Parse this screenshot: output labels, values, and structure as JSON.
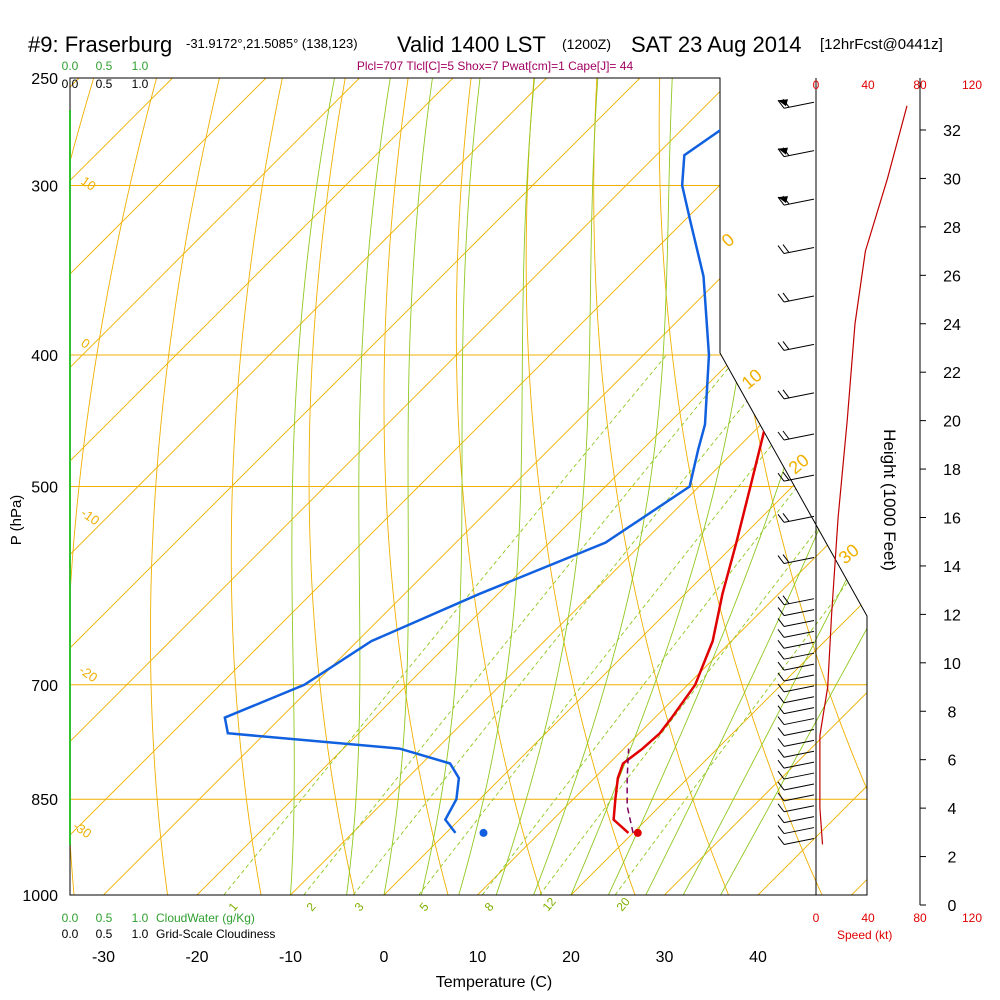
{
  "header": {
    "station": "#9: Fraserburg",
    "coords": "-31.9172°,21.5085° (138,123)",
    "valid": "Valid 1400 LST",
    "zulu": "(1200Z)",
    "date": "SAT 23 Aug 2014",
    "forecast": "[12hrFcst@0441z]"
  },
  "indices": "Plcl=707 Tlcl[C]=5 Shox=7 Pwat[cm]=1 Cape[J]= 44",
  "chart_data": {
    "type": "line",
    "subtype": "skew-t log-p sounding",
    "xlabel": "Temperature (C)",
    "ylabel": "P (hPa)",
    "y2label": "Height (1000 Feet)",
    "x_ticks": [
      "-30",
      "-20",
      "-10",
      "0",
      "10",
      "20",
      "30",
      "40"
    ],
    "x_tick_values": [
      -30,
      -20,
      -10,
      0,
      10,
      20,
      30,
      40
    ],
    "y_ticks": [
      "250",
      "300",
      "400",
      "500",
      "700",
      "850",
      "1000"
    ],
    "y_tick_values": [
      250,
      300,
      400,
      500,
      700,
      850,
      1000
    ],
    "height_ticks": [
      "0",
      "2",
      "4",
      "6",
      "8",
      "10",
      "12",
      "14",
      "16",
      "18",
      "20",
      "22",
      "24",
      "26",
      "28",
      "30",
      "32"
    ],
    "height_tick_values": [
      0,
      2,
      4,
      6,
      8,
      10,
      12,
      14,
      16,
      18,
      20,
      22,
      24,
      26,
      28,
      30,
      32
    ],
    "top_scale_green": [
      "0.0",
      "0.5",
      "1.0"
    ],
    "top_scale_black": [
      "0.0",
      "0.5",
      "1.0"
    ],
    "bottom_scale_green": [
      "0.0",
      "0.5",
      "1.0"
    ],
    "bottom_scale_black": [
      "0.0",
      "0.5",
      "1.0"
    ],
    "cloudwater_label": "CloudWater (g/Kg)",
    "cloudiness_label": "Grid-Scale Cloudiness",
    "speed_ticks": [
      "0",
      "40",
      "80",
      "120"
    ],
    "speed_tick_values": [
      0,
      40,
      80,
      120
    ],
    "speed_label": "Speed (kt)",
    "dry_adiabat_labels": [
      "-20",
      "-10",
      "0",
      "10",
      "20",
      "30"
    ],
    "moist_adiabat_labels": [
      "0",
      "10",
      "20",
      "30"
    ],
    "isotherm_labels": [
      "10",
      "0",
      "-10",
      "-20",
      "-30"
    ],
    "mixing_ratio_labels": [
      "1",
      "2",
      "3",
      "5",
      "8",
      "12",
      "20"
    ],
    "xlim": [
      -33,
      47
    ],
    "ylim_hpa": [
      1000,
      250
    ],
    "skew_note": "x shifts right with height",
    "colors": {
      "temperature": "#e00000",
      "dewpoint": "#1060e0",
      "parcel": "#800060",
      "isobar": "#f0b000",
      "dry_adiabat": "#f0b000",
      "moist_adiabat": "#90c820",
      "mixing_ratio": "#90c820",
      "speed": "#c00000",
      "title": "#000000",
      "indices": "#a00060",
      "cloud_green": "#30a030"
    },
    "series": [
      {
        "name": "Temperature",
        "points": [
          {
            "p": 900,
            "t": 19.5
          },
          {
            "p": 880,
            "t": 16.5
          },
          {
            "p": 850,
            "t": 14.5
          },
          {
            "p": 820,
            "t": 12.5
          },
          {
            "p": 800,
            "t": 11.5
          },
          {
            "p": 780,
            "t": 12.0
          },
          {
            "p": 760,
            "t": 12.2
          },
          {
            "p": 740,
            "t": 11.8
          },
          {
            "p": 700,
            "t": 10.8
          },
          {
            "p": 650,
            "t": 8.0
          },
          {
            "p": 600,
            "t": 4.0
          },
          {
            "p": 550,
            "t": 0.0
          },
          {
            "p": 500,
            "t": -4.5
          },
          {
            "p": 450,
            "t": -9.5
          },
          {
            "p": 400,
            "t": -16.0
          },
          {
            "p": 350,
            "t": -23.5
          },
          {
            "p": 330,
            "t": -27.5
          },
          {
            "p": 300,
            "t": -31.0
          },
          {
            "p": 280,
            "t": -34.0
          },
          {
            "p": 265,
            "t": -35.5
          }
        ]
      },
      {
        "name": "Dewpoint",
        "points": [
          {
            "p": 900,
            "t": 1.0
          },
          {
            "p": 880,
            "t": -1.5
          },
          {
            "p": 850,
            "t": -2.5
          },
          {
            "p": 820,
            "t": -4.5
          },
          {
            "p": 800,
            "t": -7.0
          },
          {
            "p": 780,
            "t": -14.0
          },
          {
            "p": 760,
            "t": -34.0
          },
          {
            "p": 740,
            "t": -36.0
          },
          {
            "p": 700,
            "t": -31.0
          },
          {
            "p": 650,
            "t": -28.5
          },
          {
            "p": 600,
            "t": -22.0
          },
          {
            "p": 550,
            "t": -14.0
          },
          {
            "p": 500,
            "t": -11.0
          },
          {
            "p": 470,
            "t": -14.0
          },
          {
            "p": 450,
            "t": -16.0
          },
          {
            "p": 400,
            "t": -23.0
          },
          {
            "p": 350,
            "t": -32.0
          },
          {
            "p": 320,
            "t": -39.0
          },
          {
            "p": 300,
            "t": -44.0
          },
          {
            "p": 285,
            "t": -47.0
          },
          {
            "p": 265,
            "t": -45.0
          }
        ]
      },
      {
        "name": "Parcel",
        "points": [
          {
            "p": 900,
            "t": 20.0
          },
          {
            "p": 860,
            "t": 16.5
          },
          {
            "p": 820,
            "t": 13.5
          },
          {
            "p": 780,
            "t": 10.5
          }
        ]
      }
    ],
    "surface_markers": [
      {
        "name": "surface temperature",
        "p": 900,
        "t": 20.5
      },
      {
        "name": "surface dewpoint",
        "p": 900,
        "t": 4.0
      }
    ],
    "wind_speed_profile_kt": [
      {
        "h_kft": 2.5,
        "speed": 5
      },
      {
        "h_kft": 4,
        "speed": 3
      },
      {
        "h_kft": 7,
        "speed": 3
      },
      {
        "h_kft": 9,
        "speed": 9
      },
      {
        "h_kft": 12,
        "speed": 12
      },
      {
        "h_kft": 16,
        "speed": 17
      },
      {
        "h_kft": 20,
        "speed": 24
      },
      {
        "h_kft": 24,
        "speed": 30
      },
      {
        "h_kft": 27,
        "speed": 38
      },
      {
        "h_kft": 30,
        "speed": 55
      },
      {
        "h_kft": 33,
        "speed": 70
      }
    ]
  }
}
